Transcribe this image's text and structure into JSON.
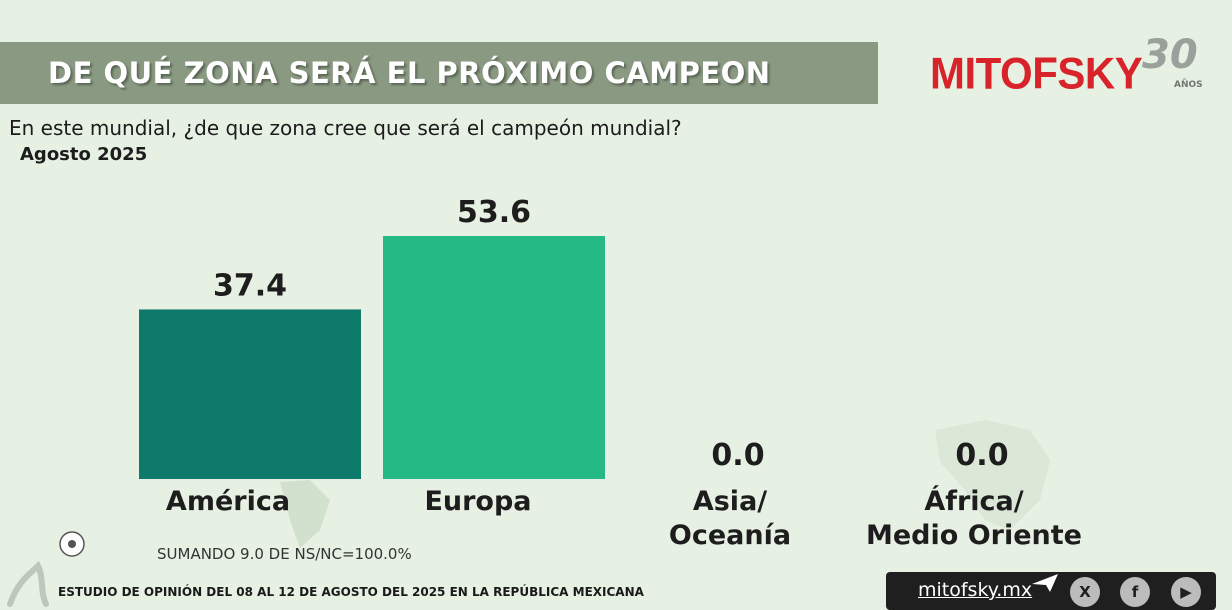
{
  "header": {
    "title": "DE QUÉ ZONA SERÁ EL PRÓXIMO CAMPEON",
    "logo_text": "MITOFSKY",
    "logo_years": "30",
    "logo_years_label": "AÑOS"
  },
  "question": "En este mundial, ¿de que zona cree que será el campeón mundial?",
  "period": "Agosto 2025",
  "chart_data": {
    "type": "bar",
    "categories": [
      "América",
      "Europa",
      "Asia/ Oceanía",
      "África/ Medio Oriente"
    ],
    "category_lines": [
      [
        "América"
      ],
      [
        "Europa"
      ],
      [
        "Asia/",
        "Oceanía"
      ],
      [
        "África/",
        "Medio Oriente"
      ]
    ],
    "values": [
      37.4,
      53.6,
      0.0,
      0.0
    ],
    "value_labels": [
      "37.4",
      "53.6",
      "0.0",
      "0.0"
    ],
    "colors": [
      "#0d7a6c",
      "#24b985",
      "#24b985",
      "#24b985"
    ],
    "title": "",
    "xlabel": "",
    "ylabel": "",
    "grid": false
  },
  "note": "SUMANDO 9.0 DE NS/NC=100.0%",
  "footer": {
    "study": "ESTUDIO DE OPINIÓN DEL 08 AL 12 DE AGOSTO DEL 2025 EN LA REPÚBLICA MEXICANA",
    "site": "mitofsky.mx",
    "social_icons": [
      "x-icon",
      "facebook-icon",
      "youtube-icon"
    ]
  }
}
